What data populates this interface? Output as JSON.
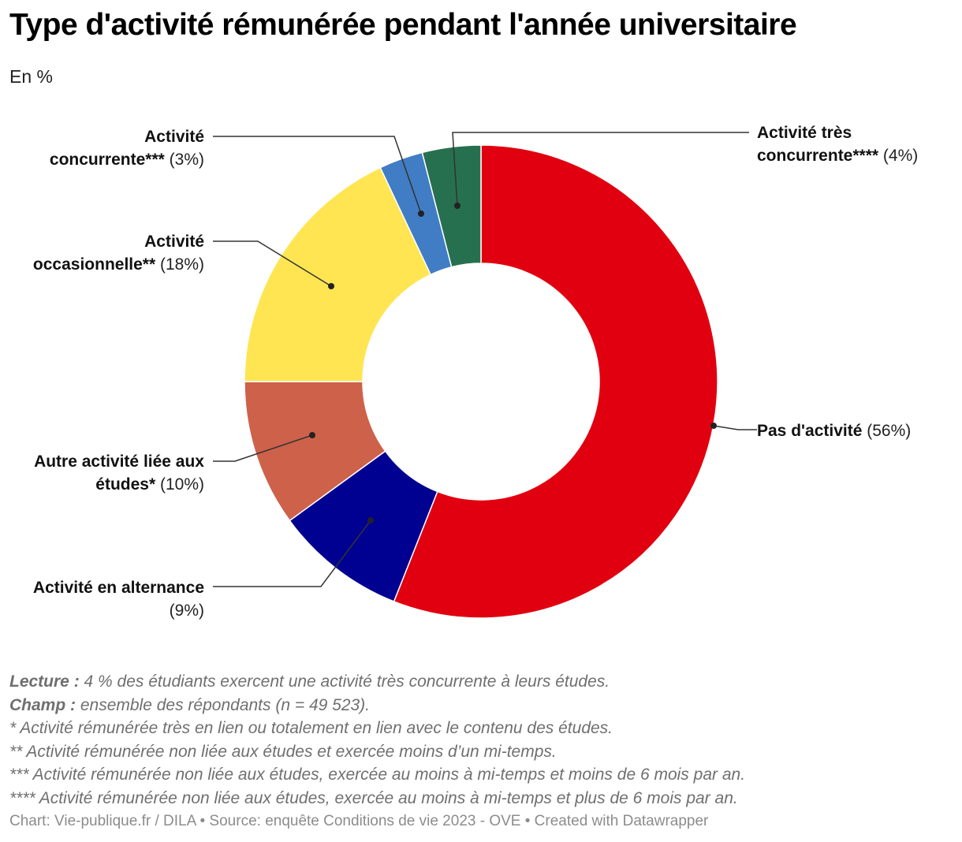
{
  "header": {
    "title": "Type d'activité rémunérée pendant l'année universitaire",
    "subtitle": "En %"
  },
  "chart_data": {
    "type": "pie",
    "donut": true,
    "title": "Type d'activité rémunérée pendant l'année universitaire",
    "subtitle": "En %",
    "unit": "%",
    "slices": [
      {
        "label": "Pas d'activité",
        "label_lines": [
          [
            "Pas d'activité",
            "(56%)"
          ]
        ],
        "value_text": "(56%)",
        "value": 56,
        "color": "#E1000F"
      },
      {
        "label": "Activité en alternance",
        "label_lines": [
          [
            "Activité en alternance",
            ""
          ],
          [
            "",
            "(9%)"
          ]
        ],
        "value_text": "(9%)",
        "value": 9,
        "color": "#000091"
      },
      {
        "label": "Autre activité liée aux études*",
        "label_lines": [
          [
            "Autre activité liée aux",
            ""
          ],
          [
            "études*",
            "(10%)"
          ]
        ],
        "value_text": "(10%)",
        "value": 10,
        "color": "#CE614A"
      },
      {
        "label": "Activité occasionnelle**",
        "label_lines": [
          [
            "Activité",
            ""
          ],
          [
            "occasionnelle**",
            "(18%)"
          ]
        ],
        "value_text": "(18%)",
        "value": 18,
        "color": "#FFE552"
      },
      {
        "label": "Activité concurrente***",
        "label_lines": [
          [
            "Activité",
            ""
          ],
          [
            "concurrente***",
            "(3%)"
          ]
        ],
        "value_text": "(3%)",
        "value": 3,
        "color": "#417DC4"
      },
      {
        "label": "Activité très concurrente****",
        "label_lines": [
          [
            "Activité très",
            ""
          ],
          [
            "concurrente****",
            "(4%)"
          ]
        ],
        "value_text": "(4%)",
        "value": 4,
        "color": "#27704F"
      }
    ]
  },
  "notes": {
    "lecture_key": "Lecture :",
    "lecture_text": "4 % des étudiants exercent une activité très concurrente à leurs études.",
    "champ_key": "Champ :",
    "champ_text": "ensemble des répondants (n = 49 523).",
    "note1": "* Activité rémunérée très en lien ou totalement en lien avec le contenu des études.",
    "note2": "** Activité rémunérée non liée aux études et exercée moins d’un mi-temps.",
    "note3": "*** Activité rémunérée non liée aux études, exercée au moins à mi-temps et moins de 6 mois par an.",
    "note4": "**** Activité rémunérée non liée aux études, exercée au moins à mi-temps et plus de 6 mois par an."
  },
  "footer": {
    "text": "Chart: Vie-publique.fr / DILA • Source: enquête Conditions de vie 2023 - OVE • Created with Datawrapper"
  }
}
